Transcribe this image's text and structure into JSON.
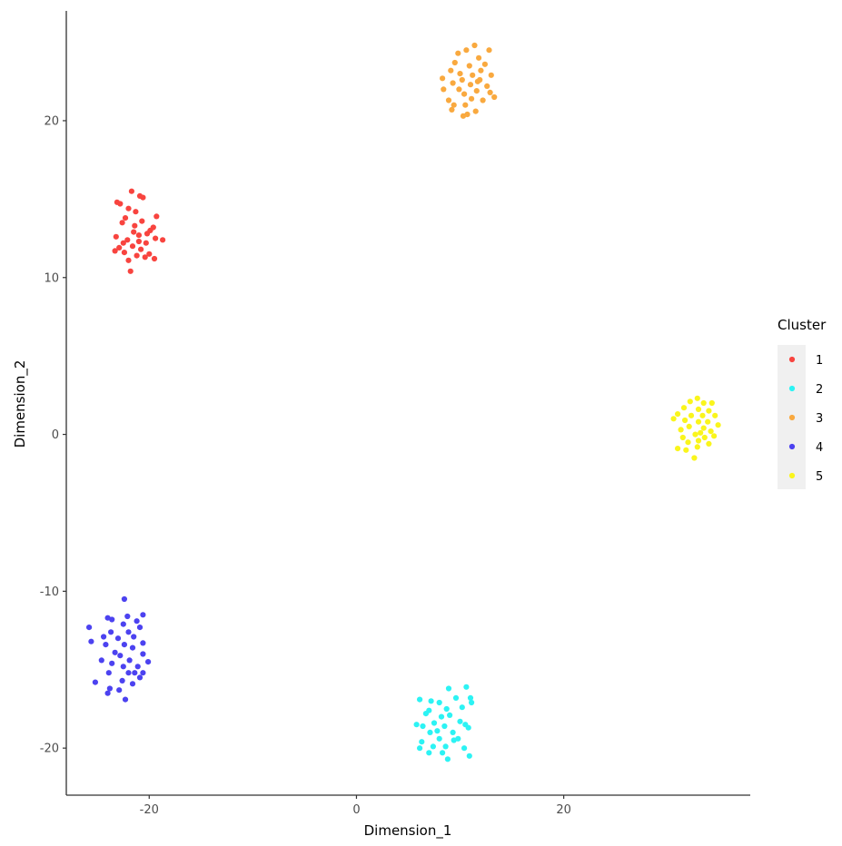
{
  "chart_data": {
    "type": "scatter",
    "title": "",
    "xlabel": "Dimension_1",
    "ylabel": "Dimension_2",
    "xlim": [
      -28,
      38
    ],
    "ylim": [
      -23,
      27
    ],
    "xticks": [
      -20,
      0,
      20
    ],
    "yticks": [
      -20,
      -10,
      0,
      10,
      20
    ],
    "xtick_labels": [
      "-20",
      "0",
      "20"
    ],
    "ytick_labels": [
      "-20",
      "-10",
      "0",
      "10",
      "20"
    ],
    "grid": false,
    "legend": {
      "title": "Cluster",
      "position": "right"
    },
    "series": [
      {
        "name": "1",
        "color": "#F8443F",
        "points": [
          [
            -23.1,
            14.8
          ],
          [
            -22.8,
            14.7
          ],
          [
            -21.7,
            15.5
          ],
          [
            -20.9,
            15.2
          ],
          [
            -20.6,
            15.1
          ],
          [
            -22.0,
            14.4
          ],
          [
            -21.3,
            14.2
          ],
          [
            -22.3,
            13.8
          ],
          [
            -20.7,
            13.6
          ],
          [
            -19.3,
            13.9
          ],
          [
            -22.6,
            13.5
          ],
          [
            -19.6,
            13.2
          ],
          [
            -21.5,
            12.9
          ],
          [
            -21.0,
            12.7
          ],
          [
            -20.2,
            12.8
          ],
          [
            -23.2,
            12.6
          ],
          [
            -22.1,
            12.4
          ],
          [
            -19.4,
            12.5
          ],
          [
            -18.7,
            12.4
          ],
          [
            -20.3,
            12.2
          ],
          [
            -21.6,
            12.0
          ],
          [
            -20.8,
            11.8
          ],
          [
            -23.3,
            11.7
          ],
          [
            -22.4,
            11.6
          ],
          [
            -22.9,
            11.9
          ],
          [
            -20.0,
            11.5
          ],
          [
            -20.4,
            11.3
          ],
          [
            -19.5,
            11.2
          ],
          [
            -21.2,
            11.4
          ],
          [
            -22.0,
            11.1
          ],
          [
            -21.8,
            10.4
          ],
          [
            -21.0,
            12.3
          ],
          [
            -22.5,
            12.2
          ],
          [
            -19.9,
            13.0
          ],
          [
            -21.4,
            13.3
          ]
        ]
      },
      {
        "name": "2",
        "color": "#2CF3F4",
        "points": [
          [
            8.9,
            -16.2
          ],
          [
            10.6,
            -16.1
          ],
          [
            6.1,
            -16.9
          ],
          [
            7.2,
            -17.0
          ],
          [
            8.0,
            -17.1
          ],
          [
            9.6,
            -16.8
          ],
          [
            11.0,
            -16.8
          ],
          [
            11.1,
            -17.1
          ],
          [
            7.0,
            -17.6
          ],
          [
            8.7,
            -17.5
          ],
          [
            10.2,
            -17.4
          ],
          [
            6.7,
            -17.8
          ],
          [
            8.2,
            -18.0
          ],
          [
            9.0,
            -17.9
          ],
          [
            7.5,
            -18.4
          ],
          [
            10.0,
            -18.3
          ],
          [
            5.8,
            -18.5
          ],
          [
            6.4,
            -18.6
          ],
          [
            8.5,
            -18.6
          ],
          [
            10.5,
            -18.5
          ],
          [
            7.1,
            -19.0
          ],
          [
            9.3,
            -19.0
          ],
          [
            10.8,
            -18.7
          ],
          [
            8.0,
            -19.4
          ],
          [
            6.3,
            -19.6
          ],
          [
            9.8,
            -19.4
          ],
          [
            7.4,
            -19.9
          ],
          [
            8.6,
            -19.9
          ],
          [
            6.1,
            -20.0
          ],
          [
            10.4,
            -20.0
          ],
          [
            8.3,
            -20.3
          ],
          [
            7.0,
            -20.3
          ],
          [
            10.9,
            -20.5
          ],
          [
            8.8,
            -20.7
          ],
          [
            9.4,
            -19.5
          ],
          [
            7.8,
            -18.9
          ]
        ]
      },
      {
        "name": "3",
        "color": "#F9A93F",
        "points": [
          [
            11.4,
            24.8
          ],
          [
            10.6,
            24.5
          ],
          [
            12.8,
            24.5
          ],
          [
            9.8,
            24.3
          ],
          [
            11.8,
            24.0
          ],
          [
            12.4,
            23.6
          ],
          [
            9.5,
            23.7
          ],
          [
            10.9,
            23.5
          ],
          [
            12.0,
            23.2
          ],
          [
            9.1,
            23.2
          ],
          [
            11.2,
            22.9
          ],
          [
            13.0,
            22.9
          ],
          [
            8.3,
            22.7
          ],
          [
            10.2,
            22.6
          ],
          [
            11.9,
            22.6
          ],
          [
            9.3,
            22.4
          ],
          [
            11.0,
            22.3
          ],
          [
            12.6,
            22.2
          ],
          [
            8.4,
            22.0
          ],
          [
            9.9,
            22.0
          ],
          [
            11.6,
            21.9
          ],
          [
            12.9,
            21.8
          ],
          [
            10.4,
            21.7
          ],
          [
            13.3,
            21.5
          ],
          [
            8.9,
            21.3
          ],
          [
            11.1,
            21.4
          ],
          [
            12.2,
            21.3
          ],
          [
            9.4,
            21.0
          ],
          [
            10.5,
            21.0
          ],
          [
            9.2,
            20.7
          ],
          [
            11.5,
            20.6
          ],
          [
            10.7,
            20.4
          ],
          [
            10.3,
            20.3
          ],
          [
            11.7,
            22.5
          ],
          [
            10.0,
            23.0
          ]
        ]
      },
      {
        "name": "4",
        "color": "#4C42F0",
        "points": [
          [
            -22.4,
            -10.5
          ],
          [
            -22.1,
            -11.6
          ],
          [
            -20.6,
            -11.5
          ],
          [
            -23.6,
            -11.8
          ],
          [
            -24.0,
            -11.7
          ],
          [
            -21.2,
            -11.9
          ],
          [
            -22.5,
            -12.1
          ],
          [
            -25.8,
            -12.3
          ],
          [
            -20.9,
            -12.3
          ],
          [
            -23.7,
            -12.6
          ],
          [
            -22.0,
            -12.6
          ],
          [
            -24.4,
            -12.9
          ],
          [
            -21.5,
            -12.9
          ],
          [
            -23.0,
            -13.0
          ],
          [
            -25.6,
            -13.2
          ],
          [
            -20.6,
            -13.3
          ],
          [
            -22.4,
            -13.4
          ],
          [
            -24.2,
            -13.4
          ],
          [
            -21.6,
            -13.6
          ],
          [
            -23.3,
            -13.9
          ],
          [
            -20.6,
            -14.0
          ],
          [
            -22.8,
            -14.1
          ],
          [
            -24.6,
            -14.4
          ],
          [
            -21.9,
            -14.4
          ],
          [
            -23.6,
            -14.6
          ],
          [
            -20.1,
            -14.5
          ],
          [
            -22.5,
            -14.8
          ],
          [
            -21.1,
            -14.8
          ],
          [
            -23.9,
            -15.2
          ],
          [
            -22.0,
            -15.2
          ],
          [
            -21.4,
            -15.2
          ],
          [
            -20.6,
            -15.2
          ],
          [
            -20.9,
            -15.5
          ],
          [
            -22.6,
            -15.7
          ],
          [
            -25.2,
            -15.8
          ],
          [
            -21.6,
            -15.9
          ],
          [
            -23.8,
            -16.2
          ],
          [
            -22.9,
            -16.3
          ],
          [
            -24.0,
            -16.5
          ],
          [
            -22.3,
            -16.9
          ]
        ]
      },
      {
        "name": "5",
        "color": "#FAF51C",
        "points": [
          [
            32.9,
            2.3
          ],
          [
            32.2,
            2.1
          ],
          [
            33.5,
            2.0
          ],
          [
            34.3,
            2.0
          ],
          [
            31.6,
            1.7
          ],
          [
            33.0,
            1.6
          ],
          [
            34.0,
            1.5
          ],
          [
            31.0,
            1.3
          ],
          [
            32.3,
            1.2
          ],
          [
            33.4,
            1.2
          ],
          [
            34.6,
            1.2
          ],
          [
            30.6,
            1.0
          ],
          [
            31.7,
            0.9
          ],
          [
            33.0,
            0.8
          ],
          [
            33.9,
            0.8
          ],
          [
            34.9,
            0.6
          ],
          [
            32.1,
            0.5
          ],
          [
            33.5,
            0.4
          ],
          [
            31.3,
            0.3
          ],
          [
            34.2,
            0.2
          ],
          [
            32.7,
            0.0
          ],
          [
            31.5,
            -0.2
          ],
          [
            34.5,
            -0.1
          ],
          [
            33.6,
            -0.2
          ],
          [
            33.0,
            -0.4
          ],
          [
            32.0,
            -0.5
          ],
          [
            34.0,
            -0.6
          ],
          [
            31.0,
            -0.9
          ],
          [
            32.9,
            -0.8
          ],
          [
            31.8,
            -1.0
          ],
          [
            32.6,
            -1.5
          ],
          [
            33.2,
            0.1
          ]
        ]
      }
    ]
  }
}
